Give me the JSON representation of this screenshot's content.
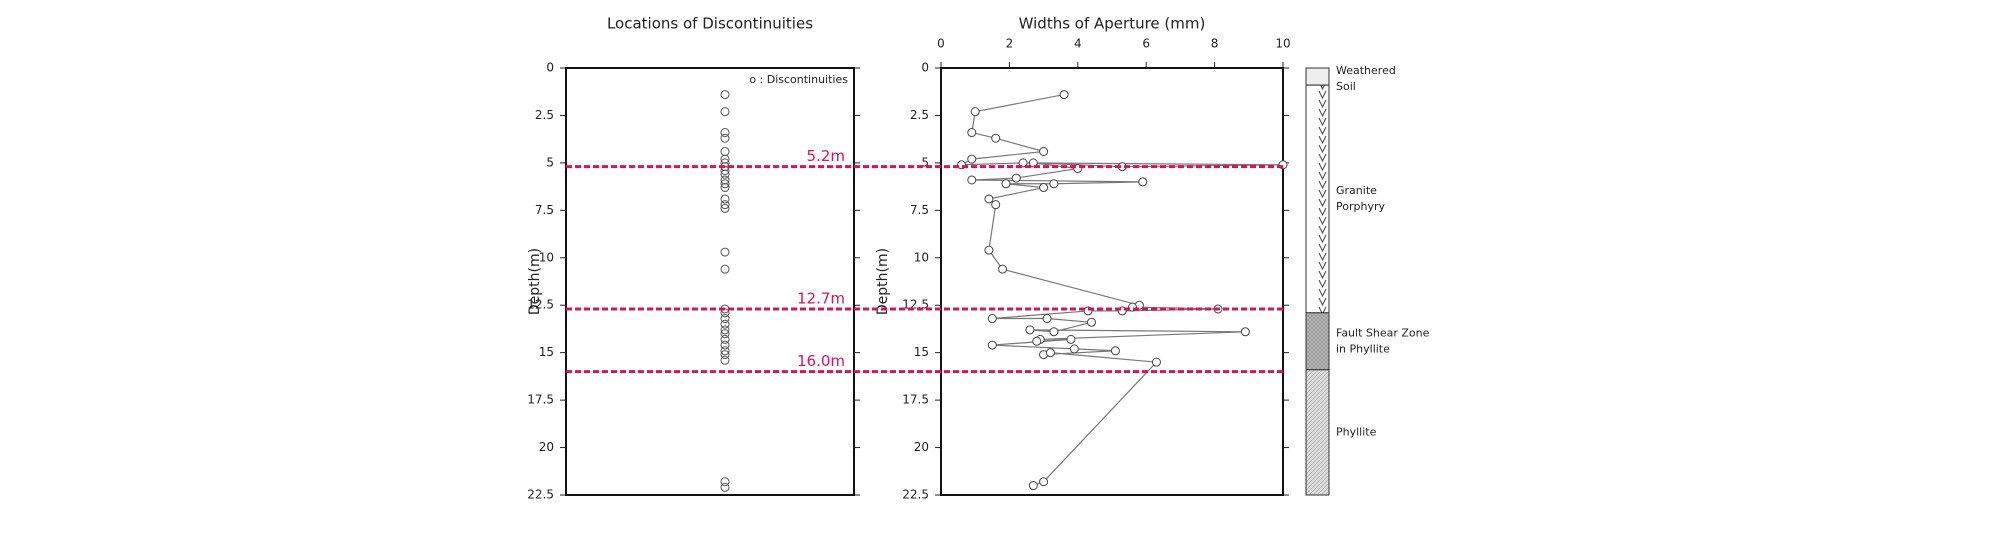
{
  "chart_data": [
    {
      "type": "scatter",
      "title": "Locations of Discontinuities",
      "y_label": "Depth(m)",
      "legend_label": "o : Discontinuities",
      "values": [
        1.4,
        2.3,
        3.4,
        3.7,
        4.4,
        4.8,
        5.0,
        5.2,
        5.4,
        5.6,
        5.9,
        6.1,
        6.3,
        6.9,
        7.2,
        7.4,
        9.7,
        10.6,
        12.7,
        12.9,
        13.2,
        13.5,
        13.8,
        14.0,
        14.3,
        14.6,
        14.9,
        15.1,
        15.4,
        21.8,
        22.1
      ],
      "color": "#555555",
      "ylim": [
        0,
        22.5
      ],
      "yticks": [
        0,
        2.5,
        5,
        7.5,
        10,
        12.5,
        15,
        17.5,
        20,
        22.5
      ]
    },
    {
      "type": "line",
      "title": "Widths of Aperture (mm)",
      "y_label": "Depth(m)",
      "x": [
        3.6,
        1.0,
        0.9,
        1.6,
        3.0,
        0.9,
        0.6,
        2.4,
        10.0,
        5.3,
        2.7,
        4.0,
        2.2,
        0.9,
        5.9,
        3.3,
        1.9,
        3.0,
        1.4,
        1.6,
        1.4,
        1.8,
        5.8,
        5.6,
        8.1,
        5.3,
        4.3,
        1.5,
        3.1,
        4.4,
        3.3,
        2.6,
        8.9,
        2.9,
        2.8,
        3.8,
        1.5,
        3.9,
        5.1,
        3.0,
        3.2,
        6.3,
        3.0,
        2.7
      ],
      "values": [
        1.4,
        2.3,
        3.4,
        3.7,
        4.4,
        4.8,
        5.1,
        5.0,
        5.1,
        5.2,
        5.0,
        5.3,
        5.8,
        5.9,
        6.0,
        6.1,
        6.1,
        6.3,
        6.9,
        7.2,
        9.6,
        10.6,
        12.5,
        12.6,
        12.7,
        12.8,
        12.8,
        13.2,
        13.2,
        13.4,
        13.9,
        13.8,
        13.9,
        14.3,
        14.4,
        14.3,
        14.6,
        14.8,
        14.9,
        15.1,
        15.0,
        15.5,
        21.8,
        22.0
      ],
      "color": "#777777",
      "xlim": [
        0,
        10
      ],
      "xticks": [
        0,
        2,
        4,
        6,
        8,
        10
      ],
      "ylim": [
        0,
        22.5
      ],
      "yticks": [
        0,
        2.5,
        5,
        7.5,
        10,
        12.5,
        15,
        17.5,
        20,
        22.5
      ]
    }
  ],
  "depth_markers": [
    {
      "value": 5.2,
      "label": "5.2m"
    },
    {
      "value": 12.7,
      "label": "12.7m"
    },
    {
      "value": 16.0,
      "label": "16.0m"
    }
  ],
  "lithology": [
    {
      "top": 0,
      "bottom": 0.9,
      "lines": [
        "Weathered",
        "Soil"
      ],
      "fill": "#eeeeee"
    },
    {
      "top": 0.9,
      "bottom": 12.9,
      "lines": [
        "Granite",
        "Porphyry"
      ],
      "fill": "url(#vpat)"
    },
    {
      "top": 12.9,
      "bottom": 15.9,
      "lines": [
        "Fault Shear Zone",
        "in Phyllite"
      ],
      "fill": "url(#xpat)"
    },
    {
      "top": 15.9,
      "bottom": 22.5,
      "lines": [
        "Phyllite"
      ],
      "fill": "url(#hpat)"
    }
  ]
}
